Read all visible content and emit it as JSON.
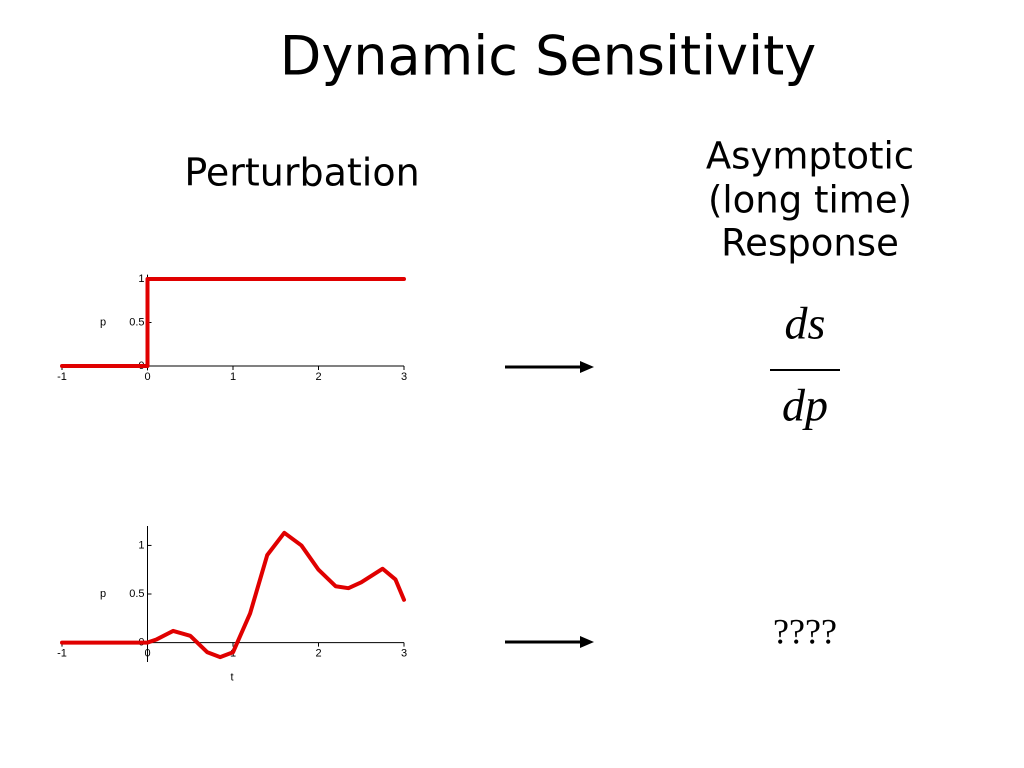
{
  "slide": {
    "title": "Dynamic Sensitivity",
    "left_heading": "Perturbation",
    "right_heading": [
      "Asymptotic",
      "(long time)",
      "Response"
    ],
    "fraction": {
      "numerator": "ds",
      "denominator": "dp"
    },
    "unknown": "????"
  },
  "chart_data": [
    {
      "type": "line",
      "ylabel": "p",
      "color": "#e00000",
      "x": [
        -1,
        0,
        0,
        3
      ],
      "values": [
        0,
        0,
        1,
        1
      ],
      "xlim": [
        -1,
        3
      ],
      "ylim": [
        -0.05,
        1.05
      ],
      "xticks": [
        -1,
        0,
        1,
        2,
        3
      ],
      "yticks": [
        0,
        0.5,
        1
      ]
    },
    {
      "type": "line",
      "xlabel": "t",
      "ylabel": "p",
      "color": "#e00000",
      "x": [
        -1,
        0,
        0.1,
        0.3,
        0.5,
        0.7,
        0.85,
        1.0,
        1.2,
        1.4,
        1.6,
        1.8,
        2.0,
        2.2,
        2.35,
        2.5,
        2.75,
        2.9,
        3.0
      ],
      "values": [
        0,
        0,
        0.03,
        0.12,
        0.07,
        -0.1,
        -0.15,
        -0.1,
        0.3,
        0.9,
        1.13,
        1.0,
        0.75,
        0.58,
        0.56,
        0.62,
        0.76,
        0.65,
        0.44
      ],
      "xlim": [
        -1,
        3
      ],
      "ylim": [
        -0.2,
        1.2
      ],
      "xticks": [
        -1,
        0,
        1,
        2,
        3
      ],
      "yticks": [
        0,
        0.5,
        1
      ]
    }
  ]
}
